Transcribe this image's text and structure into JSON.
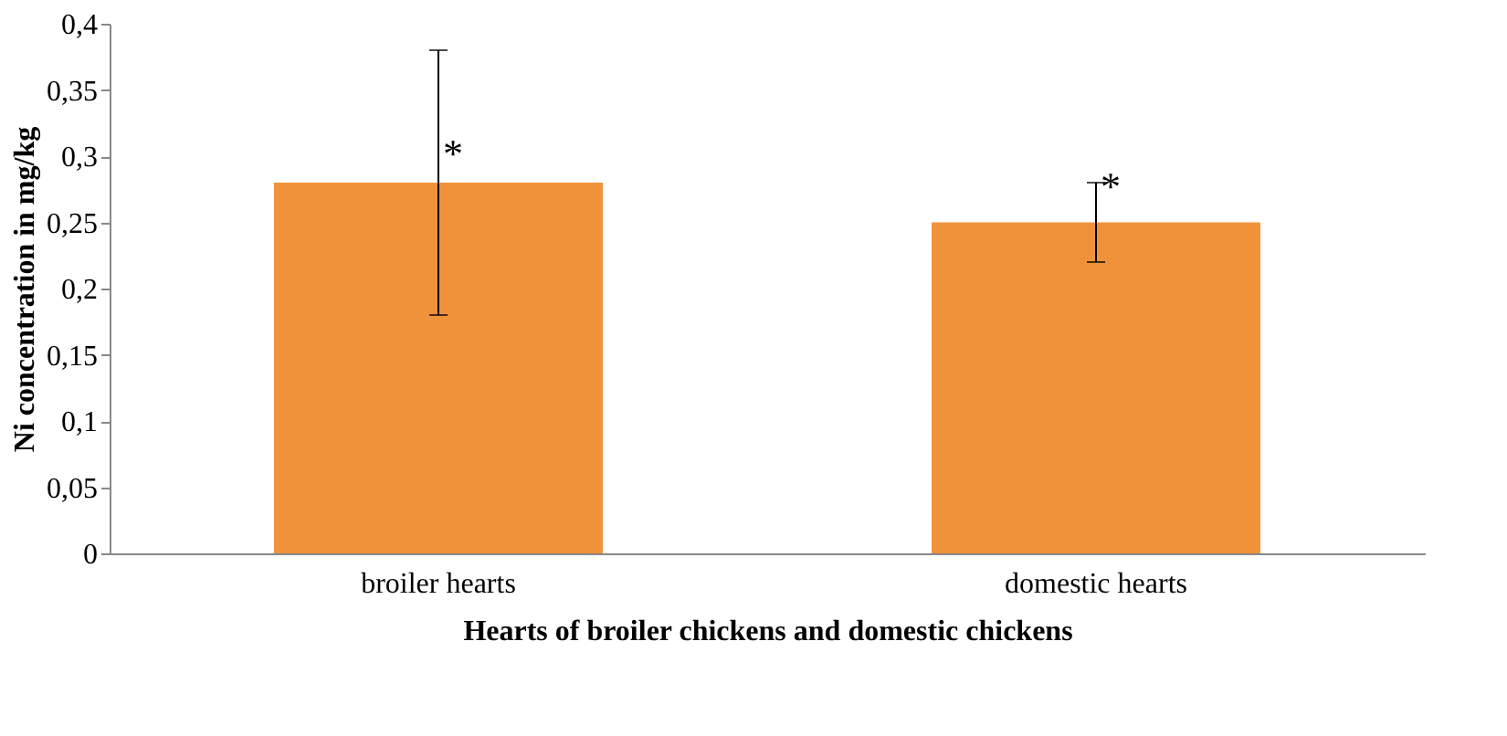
{
  "chart_data": {
    "type": "bar",
    "xlabel": "Hearts of broiler chickens and domestic chickens",
    "ylabel": "Ni concentration in mg/kg",
    "categories": [
      "broiler hearts",
      "domestic hearts"
    ],
    "values": [
      0.28,
      0.25
    ],
    "color": "#f0923a",
    "errors": [
      0.1,
      0.03
    ],
    "ylim": [
      0,
      0.4
    ],
    "yticks": [
      0,
      {
        "value": 0.05,
        "label": "0,05"
      },
      {
        "value": 0.1,
        "label": "0,1"
      },
      {
        "value": 0.15,
        "label": "0,15"
      },
      {
        "value": 0.2,
        "label": "0,2"
      },
      {
        "value": 0.25,
        "label": "0,25"
      },
      {
        "value": 0.3,
        "label": "0,3"
      },
      {
        "value": 0.35,
        "label": "0,35"
      },
      {
        "value": 0.4,
        "label": "0,4"
      }
    ],
    "annotations": [
      {
        "text": "*",
        "x": "broiler hearts",
        "y": 0.31
      },
      {
        "text": "*",
        "x": "domestic hearts",
        "y": 0.285
      }
    ],
    "grid": false
  }
}
